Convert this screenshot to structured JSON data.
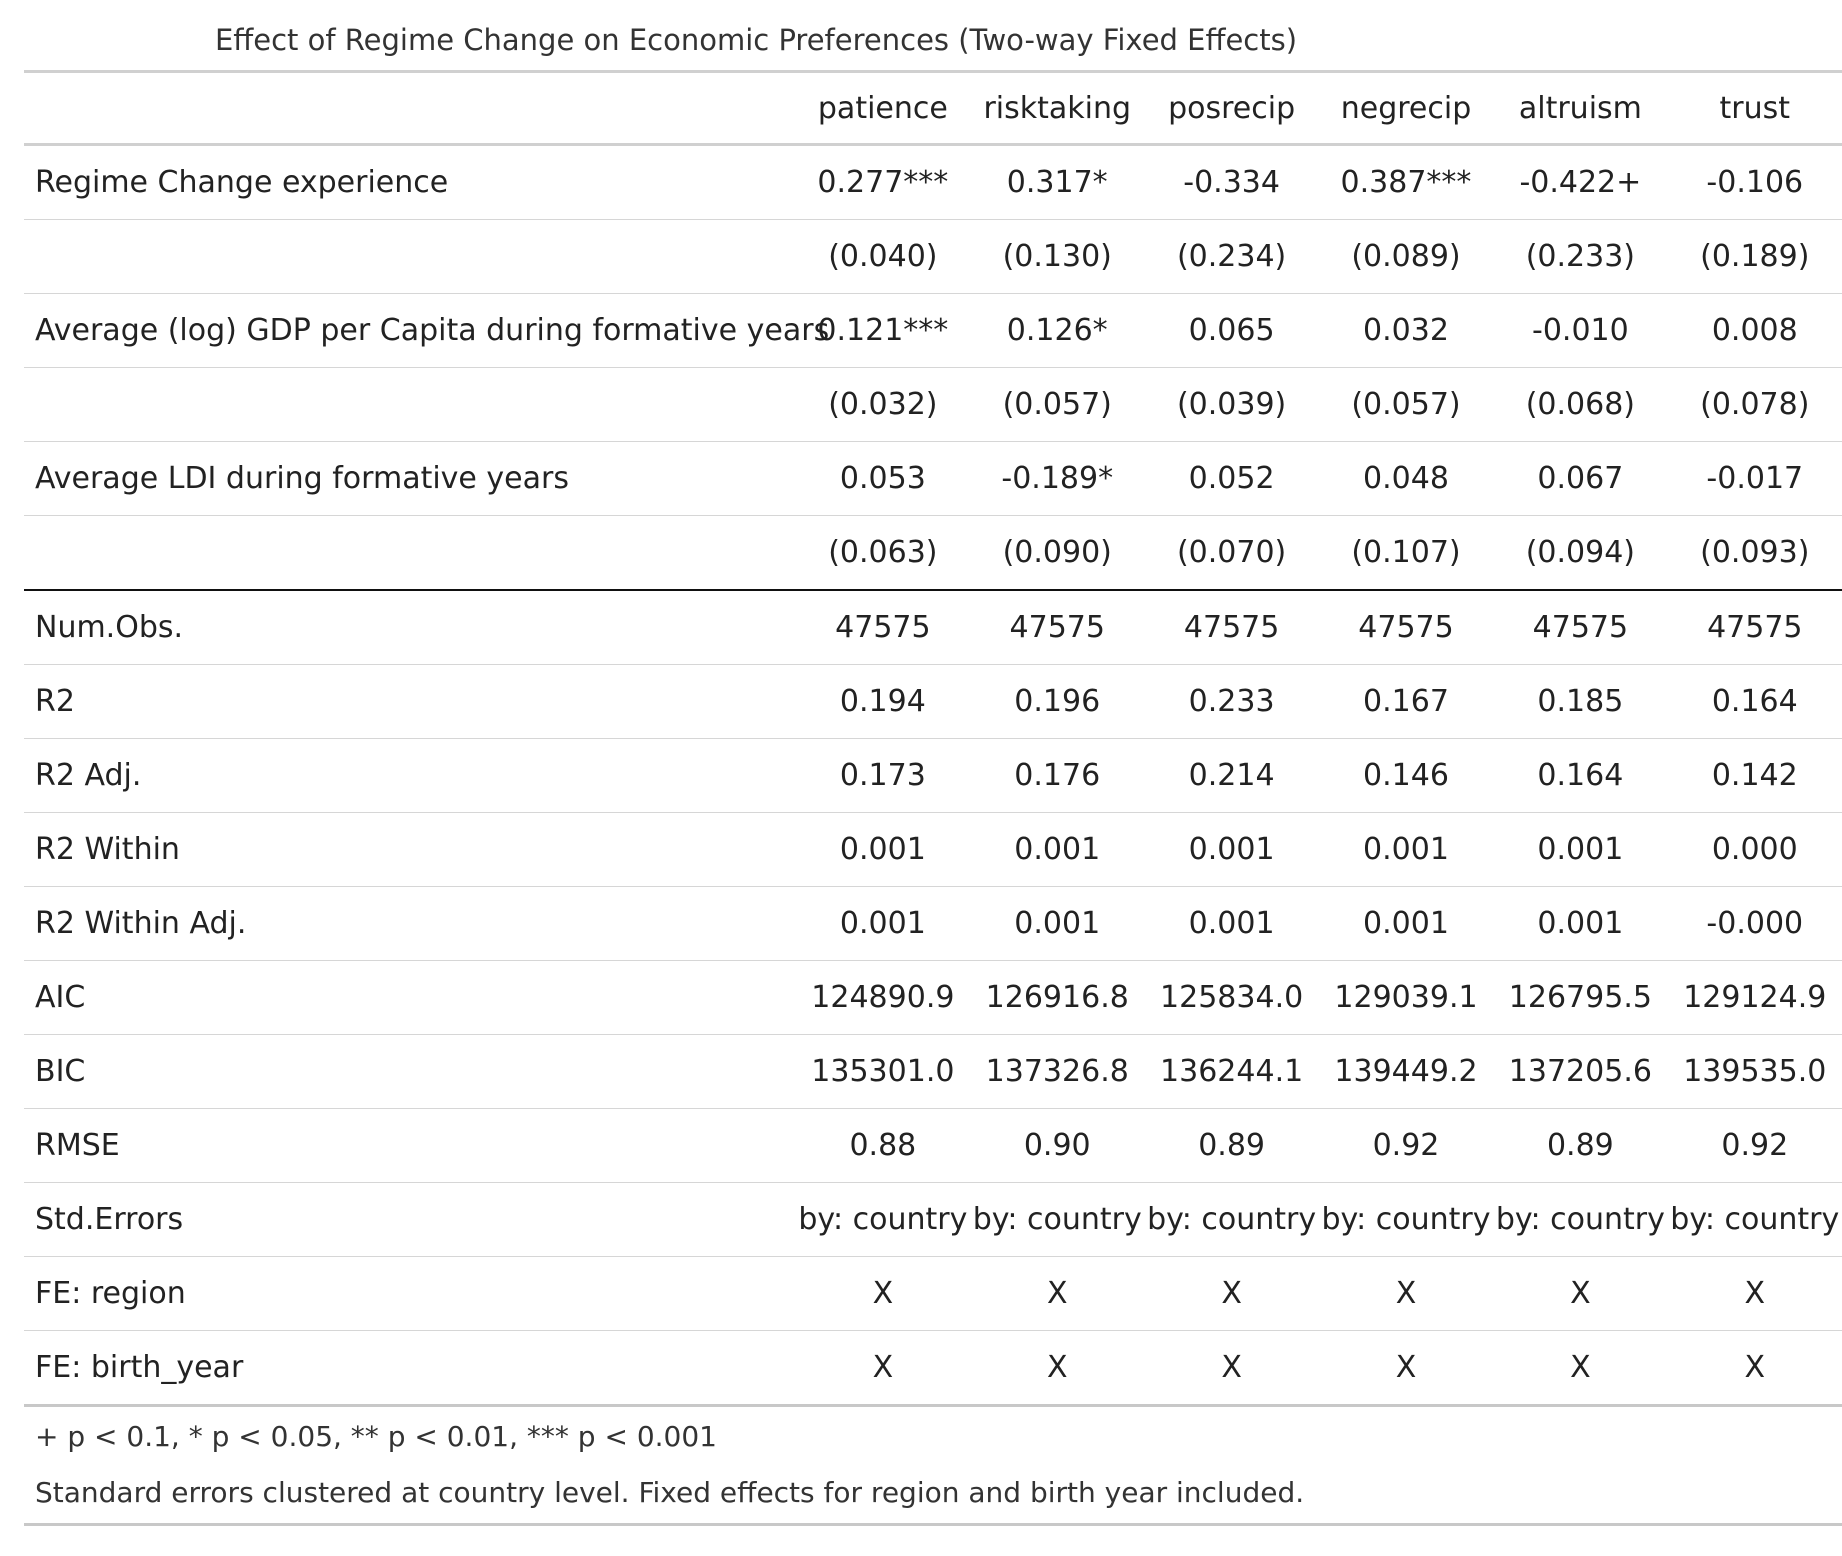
{
  "title": "Effect of Regime Change on Economic Preferences (Two-way Fixed Effects)",
  "columns": [
    "patience",
    "risktaking",
    "posrecip",
    "negrecip",
    "altruism",
    "trust"
  ],
  "coefficient_rows": [
    {
      "label": "Regime Change experience",
      "values": [
        "0.277***",
        "0.317*",
        "-0.334",
        "0.387***",
        "-0.422+",
        "-0.106"
      ]
    },
    {
      "label": "",
      "values": [
        "(0.040)",
        "(0.130)",
        "(0.234)",
        "(0.089)",
        "(0.233)",
        "(0.189)"
      ]
    },
    {
      "label": "Average (log) GDP per Capita during formative years",
      "values": [
        "0.121***",
        "0.126*",
        "0.065",
        "0.032",
        "-0.010",
        "0.008"
      ]
    },
    {
      "label": "",
      "values": [
        "(0.032)",
        "(0.057)",
        "(0.039)",
        "(0.057)",
        "(0.068)",
        "(0.078)"
      ]
    },
    {
      "label": "Average LDI during formative years",
      "values": [
        "0.053",
        "-0.189*",
        "0.052",
        "0.048",
        "0.067",
        "-0.017"
      ]
    },
    {
      "label": "",
      "values": [
        "(0.063)",
        "(0.090)",
        "(0.070)",
        "(0.107)",
        "(0.094)",
        "(0.093)"
      ]
    }
  ],
  "stat_rows": [
    {
      "label": "Num.Obs.",
      "values": [
        "47575",
        "47575",
        "47575",
        "47575",
        "47575",
        "47575"
      ]
    },
    {
      "label": "R2",
      "values": [
        "0.194",
        "0.196",
        "0.233",
        "0.167",
        "0.185",
        "0.164"
      ]
    },
    {
      "label": "R2 Adj.",
      "values": [
        "0.173",
        "0.176",
        "0.214",
        "0.146",
        "0.164",
        "0.142"
      ]
    },
    {
      "label": "R2 Within",
      "values": [
        "0.001",
        "0.001",
        "0.001",
        "0.001",
        "0.001",
        "0.000"
      ]
    },
    {
      "label": "R2 Within Adj.",
      "values": [
        "0.001",
        "0.001",
        "0.001",
        "0.001",
        "0.001",
        "-0.000"
      ]
    },
    {
      "label": "AIC",
      "values": [
        "124890.9",
        "126916.8",
        "125834.0",
        "129039.1",
        "126795.5",
        "129124.9"
      ]
    },
    {
      "label": "BIC",
      "values": [
        "135301.0",
        "137326.8",
        "136244.1",
        "139449.2",
        "137205.6",
        "139535.0"
      ]
    },
    {
      "label": "RMSE",
      "values": [
        "0.88",
        "0.90",
        "0.89",
        "0.92",
        "0.89",
        "0.92"
      ]
    },
    {
      "label": "Std.Errors",
      "values": [
        "by: country",
        "by: country",
        "by: country",
        "by: country",
        "by: country",
        "by: country"
      ]
    },
    {
      "label": "FE: region",
      "values": [
        "X",
        "X",
        "X",
        "X",
        "X",
        "X"
      ]
    },
    {
      "label": "FE: birth_year",
      "values": [
        "X",
        "X",
        "X",
        "X",
        "X",
        "X"
      ]
    }
  ],
  "notes": [
    "+ p < 0.1, * p < 0.05, ** p < 0.01, *** p < 0.001",
    "Standard errors clustered at country level. Fixed effects for region and birth year included."
  ]
}
